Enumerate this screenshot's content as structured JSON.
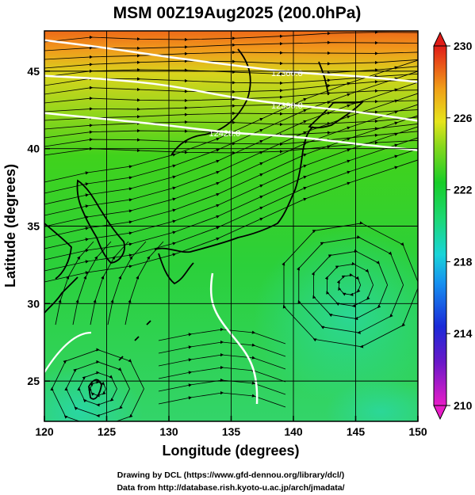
{
  "title": "MSM 00Z19Aug2025 (200.0hPa)",
  "xlabel": "Longitude (degrees)",
  "ylabel": "Latitude  (degrees)",
  "x_ticks": [
    "120",
    "125",
    "130",
    "135",
    "140",
    "145",
    "150"
  ],
  "y_ticks": [
    "25",
    "30",
    "35",
    "40",
    "45"
  ],
  "colorbar": {
    "ticks": [
      "230",
      "226",
      "222",
      "218",
      "214",
      "210"
    ],
    "range": [
      210,
      230
    ]
  },
  "contour_labels": [
    "12360.0",
    "12390.0",
    "12420.0"
  ],
  "credits": {
    "line1": "Drawing by DCL (https://www.gfd-dennou.org/library/dcl/)",
    "line2": "Data from http://database.rish.kyoto-u.ac.jp/arch/jmadata/"
  },
  "chart_data": {
    "type": "heatmap",
    "title": "MSM 00Z19Aug2025 (200.0hPa)",
    "xlabel": "Longitude (degrees)",
    "ylabel": "Latitude  (degrees)",
    "xlim": [
      120,
      150
    ],
    "ylim": [
      22.4,
      47.6
    ],
    "grid": true,
    "colorbar_range": [
      210,
      230
    ],
    "contours": [
      {
        "label": "12360.0",
        "points": [
          [
            120,
            47.0
          ],
          [
            125,
            46.5
          ],
          [
            130,
            45.9
          ],
          [
            135,
            45.4
          ],
          [
            140,
            44.9
          ],
          [
            145,
            44.7
          ],
          [
            150,
            44.3
          ]
        ]
      },
      {
        "label": "12390.0",
        "points": [
          [
            120,
            44.7
          ],
          [
            125,
            44.5
          ],
          [
            130,
            44.1
          ],
          [
            135,
            43.3
          ],
          [
            140,
            42.8
          ],
          [
            145,
            42.4
          ],
          [
            150,
            41.8
          ]
        ]
      },
      {
        "label": "12420.0",
        "points": [
          [
            120,
            42.3
          ],
          [
            125,
            41.9
          ],
          [
            130,
            41.5
          ],
          [
            135,
            41.0
          ],
          [
            140,
            40.8
          ],
          [
            145,
            40.3
          ],
          [
            150,
            39.9
          ]
        ]
      }
    ],
    "cyclones": [
      {
        "name": "",
        "center": [
          144.5,
          31.2
        ]
      },
      {
        "name": "",
        "center": [
          124.3,
          24.5
        ]
      }
    ]
  }
}
